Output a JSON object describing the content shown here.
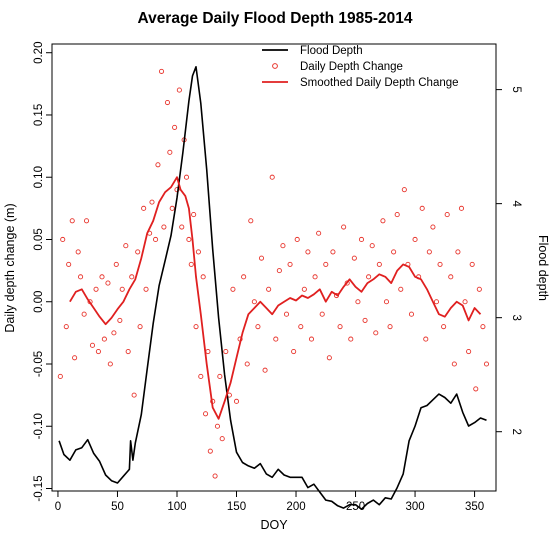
{
  "chart_data": {
    "type": "line",
    "title": "Average Daily Flood Depth 1985-2014",
    "xlabel": "DOY",
    "ylabel_left": "Daily depth change (m)",
    "ylabel_right": "Flood depth",
    "xlim": [
      -5,
      368
    ],
    "ylim_left": [
      -0.152,
      0.207
    ],
    "ylim_right": [
      1.48,
      5.4
    ],
    "xticks": [
      "0",
      "50",
      "100",
      "150",
      "200",
      "250",
      "300",
      "350"
    ],
    "yticks_left": [
      "-0.15",
      "-0.10",
      "-0.05",
      "0.00",
      "0.05",
      "0.10",
      "0.15",
      "0.20"
    ],
    "yticks_right": [
      "2",
      "3",
      "4",
      "5"
    ],
    "grid": false,
    "legend_position": "top-right",
    "legend": [
      {
        "label": "Flood Depth",
        "type": "line",
        "color": "#000000"
      },
      {
        "label": "Daily Depth Change",
        "type": "points",
        "color": "#e8342c"
      },
      {
        "label": "Smoothed Daily Depth Change",
        "type": "line",
        "color": "#e02020"
      }
    ],
    "series": [
      {
        "name": "Flood Depth",
        "axis": "right",
        "color": "#000000",
        "x": [
          1,
          5,
          10,
          15,
          20,
          25,
          30,
          35,
          40,
          45,
          50,
          55,
          60,
          61,
          63,
          65,
          70,
          75,
          80,
          85,
          90,
          95,
          100,
          105,
          110,
          113,
          116,
          120,
          125,
          130,
          135,
          140,
          145,
          150,
          155,
          160,
          165,
          170,
          175,
          180,
          185,
          190,
          195,
          200,
          205,
          210,
          215,
          220,
          225,
          230,
          235,
          240,
          245,
          250,
          255,
          260,
          265,
          270,
          275,
          280,
          285,
          290,
          295,
          300,
          305,
          310,
          315,
          320,
          325,
          330,
          335,
          340,
          345,
          350,
          355,
          360
        ],
        "y": [
          1.92,
          1.8,
          1.75,
          1.84,
          1.86,
          1.93,
          1.81,
          1.74,
          1.62,
          1.57,
          1.55,
          1.61,
          1.67,
          1.92,
          1.75,
          1.9,
          2.15,
          2.55,
          2.95,
          3.28,
          3.5,
          3.72,
          4.05,
          4.45,
          4.9,
          5.12,
          5.2,
          4.88,
          4.3,
          3.6,
          3.0,
          2.5,
          2.1,
          1.82,
          1.73,
          1.7,
          1.68,
          1.72,
          1.63,
          1.6,
          1.67,
          1.62,
          1.6,
          1.6,
          1.6,
          1.51,
          1.54,
          1.47,
          1.4,
          1.39,
          1.35,
          1.33,
          1.36,
          1.36,
          1.32,
          1.37,
          1.4,
          1.36,
          1.42,
          1.41,
          1.51,
          1.63,
          1.92,
          2.05,
          2.21,
          2.23,
          2.28,
          2.33,
          2.3,
          2.25,
          2.33,
          2.17,
          2.05,
          2.08,
          2.12,
          2.1
        ]
      },
      {
        "name": "Smoothed Daily Depth Change",
        "axis": "left",
        "color": "#e02020",
        "x": [
          10,
          15,
          20,
          25,
          30,
          35,
          40,
          45,
          50,
          55,
          60,
          65,
          70,
          75,
          80,
          85,
          90,
          95,
          100,
          103,
          107,
          110,
          113,
          116,
          120,
          125,
          130,
          135,
          140,
          145,
          150,
          155,
          160,
          165,
          170,
          175,
          180,
          185,
          190,
          195,
          200,
          205,
          210,
          215,
          220,
          225,
          230,
          235,
          240,
          245,
          250,
          255,
          260,
          265,
          270,
          275,
          280,
          285,
          290,
          295,
          300,
          305,
          310,
          315,
          320,
          325,
          330,
          335,
          340,
          345,
          350,
          355
        ],
        "y": [
          0.0,
          0.008,
          0.01,
          0.002,
          -0.005,
          -0.012,
          -0.018,
          -0.013,
          -0.006,
          0.0,
          0.01,
          0.018,
          0.035,
          0.055,
          0.065,
          0.08,
          0.088,
          0.092,
          0.1,
          0.09,
          0.085,
          0.075,
          0.05,
          0.02,
          -0.01,
          -0.05,
          -0.085,
          -0.094,
          -0.08,
          -0.065,
          -0.045,
          -0.025,
          -0.01,
          -0.005,
          0.0,
          -0.005,
          -0.01,
          -0.003,
          0.0,
          0.003,
          0.001,
          0.005,
          0.003,
          0.006,
          0.01,
          0.0,
          0.008,
          0.005,
          0.012,
          0.018,
          0.012,
          0.008,
          0.015,
          0.018,
          0.022,
          0.02,
          0.015,
          0.025,
          0.03,
          0.028,
          0.02,
          0.018,
          0.01,
          0.0,
          -0.01,
          -0.012,
          -0.005,
          0.0,
          -0.003,
          -0.015,
          -0.005,
          -0.01
        ]
      },
      {
        "name": "Daily Depth Change",
        "axis": "left",
        "type": "scatter",
        "color": "#e8342c",
        "x": [
          2,
          4,
          7,
          9,
          12,
          14,
          17,
          19,
          22,
          24,
          27,
          29,
          32,
          34,
          37,
          39,
          42,
          44,
          47,
          49,
          52,
          54,
          57,
          59,
          62,
          64,
          67,
          69,
          72,
          74,
          77,
          79,
          82,
          84,
          87,
          89,
          92,
          94,
          96,
          98,
          100,
          102,
          104,
          106,
          108,
          110,
          112,
          114,
          116,
          118,
          120,
          122,
          124,
          126,
          128,
          130,
          132,
          134,
          136,
          138,
          141,
          144,
          147,
          150,
          153,
          156,
          159,
          162,
          165,
          168,
          171,
          174,
          177,
          180,
          183,
          186,
          189,
          192,
          195,
          198,
          201,
          204,
          207,
          210,
          213,
          216,
          219,
          222,
          225,
          228,
          231,
          234,
          237,
          240,
          243,
          246,
          249,
          252,
          255,
          258,
          261,
          264,
          267,
          270,
          273,
          276,
          279,
          282,
          285,
          288,
          291,
          294,
          297,
          300,
          303,
          306,
          309,
          312,
          315,
          318,
          321,
          324,
          327,
          330,
          333,
          336,
          339,
          342,
          345,
          348,
          351,
          354,
          357,
          360
        ],
        "y": [
          -0.06,
          0.05,
          -0.02,
          0.03,
          0.065,
          -0.045,
          0.04,
          0.02,
          -0.01,
          0.065,
          0.0,
          -0.035,
          0.01,
          -0.04,
          0.02,
          -0.03,
          0.015,
          -0.05,
          -0.025,
          0.03,
          -0.015,
          0.01,
          0.045,
          -0.04,
          0.02,
          -0.075,
          0.04,
          -0.02,
          0.075,
          0.01,
          0.055,
          0.08,
          0.05,
          0.11,
          0.185,
          0.06,
          0.16,
          0.12,
          0.075,
          0.14,
          0.09,
          0.17,
          0.06,
          0.13,
          0.1,
          0.05,
          0.03,
          0.07,
          -0.02,
          0.04,
          -0.06,
          0.02,
          -0.09,
          -0.04,
          -0.12,
          -0.08,
          -0.14,
          -0.1,
          -0.06,
          -0.11,
          -0.04,
          -0.075,
          0.01,
          -0.08,
          -0.03,
          0.02,
          -0.05,
          0.065,
          0.0,
          -0.02,
          0.035,
          -0.055,
          0.01,
          0.1,
          -0.03,
          0.025,
          0.045,
          -0.01,
          0.03,
          -0.04,
          0.05,
          -0.02,
          0.01,
          0.04,
          -0.03,
          0.02,
          0.055,
          -0.01,
          0.03,
          -0.045,
          0.04,
          0.005,
          -0.02,
          0.06,
          0.015,
          -0.03,
          0.035,
          0.0,
          0.05,
          -0.015,
          0.02,
          0.045,
          -0.025,
          0.03,
          0.065,
          0.0,
          -0.02,
          0.04,
          0.07,
          0.01,
          0.09,
          0.03,
          -0.01,
          0.05,
          0.02,
          0.075,
          -0.03,
          0.04,
          0.06,
          0.0,
          0.03,
          -0.02,
          0.07,
          0.02,
          -0.05,
          0.04,
          0.075,
          0.0,
          -0.04,
          0.03,
          -0.07,
          0.01,
          -0.02,
          -0.05
        ]
      }
    ]
  }
}
